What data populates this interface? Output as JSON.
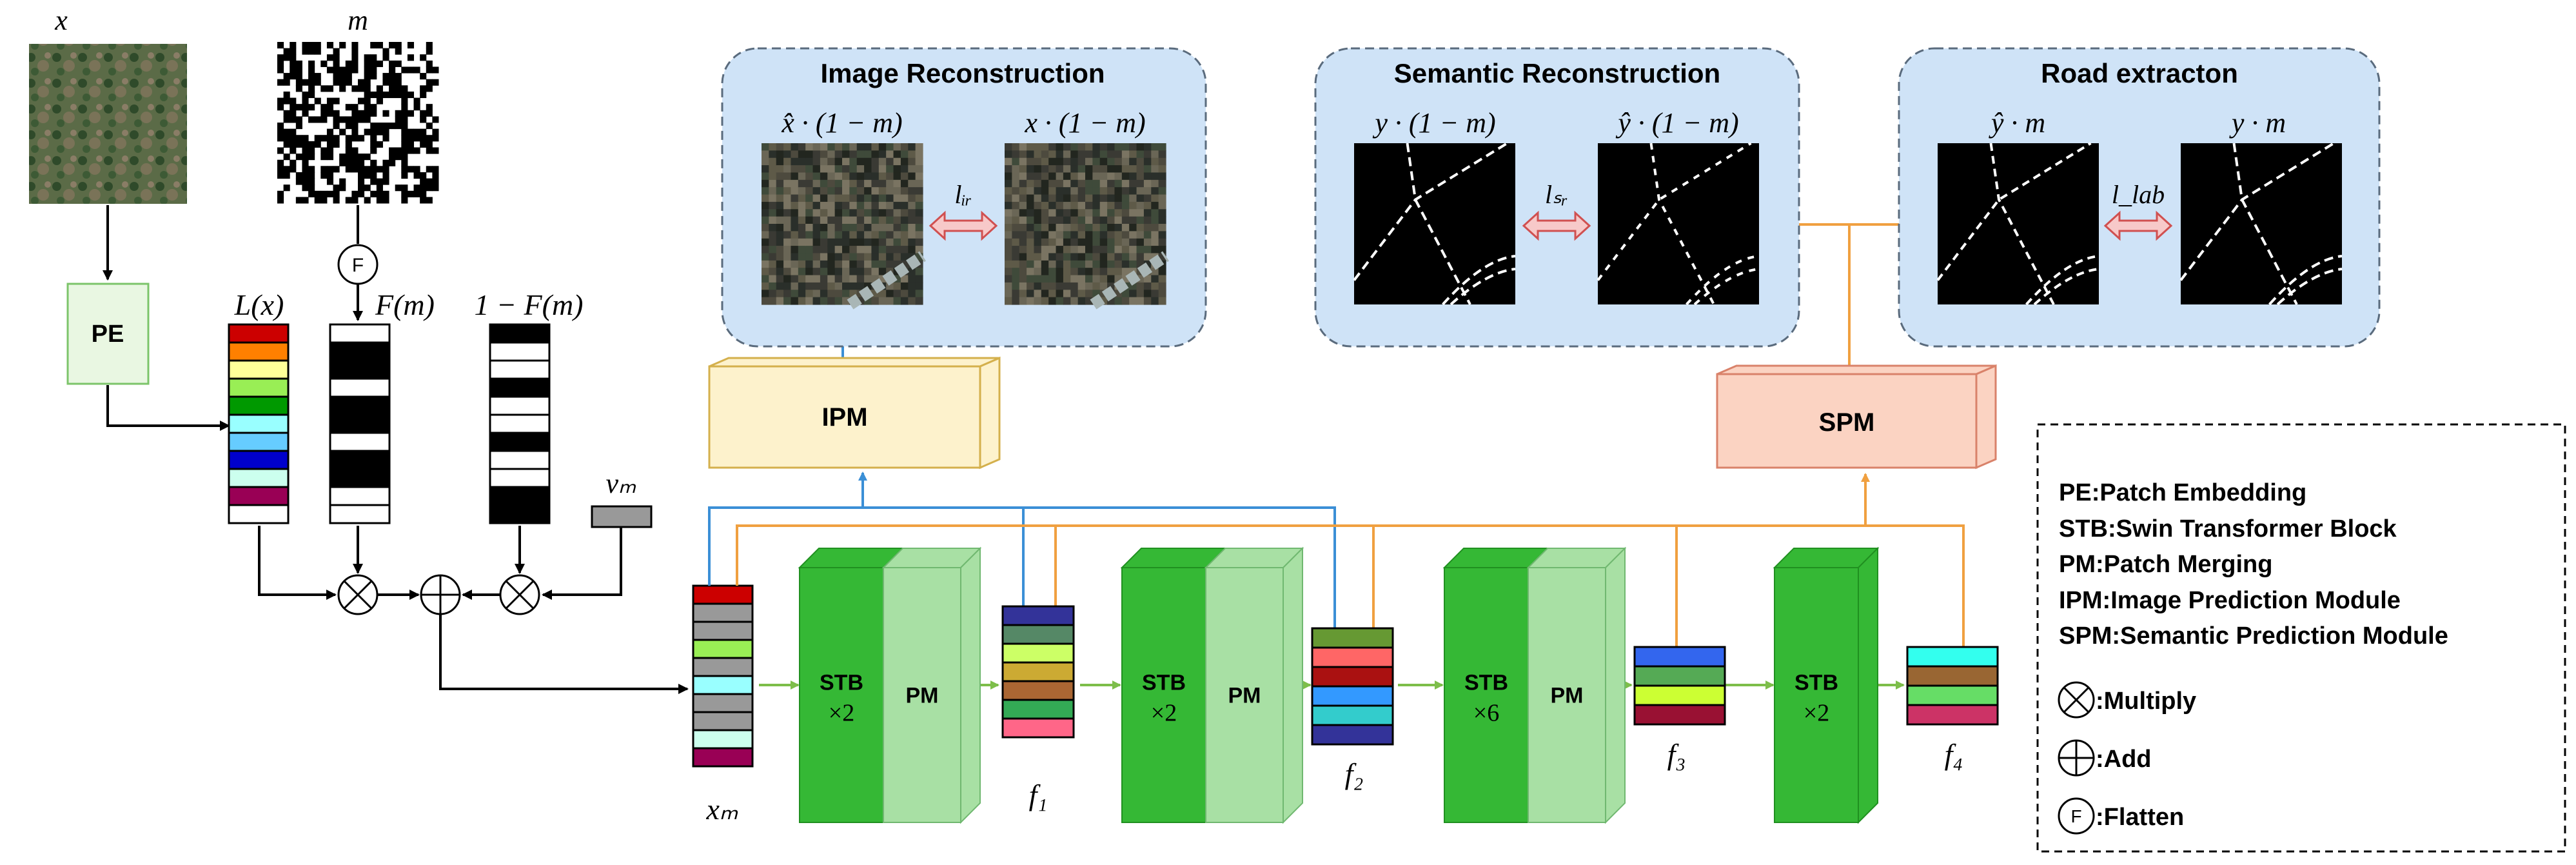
{
  "colors": {
    "panel_fill": "#cfe3f7",
    "panel_stroke": "#5a6b7d",
    "ipm_fill": "#fdf2cc",
    "ipm_stroke": "#d4b04c",
    "spm_fill": "#fbd3c2",
    "spm_stroke": "#d9826a",
    "pe_fill": "#e9f7e2",
    "pe_stroke": "#7cc46a",
    "stb_dark": "#35b835",
    "stb_light": "#a8e0a4",
    "blue_line": "#3b8fd6",
    "orange_line": "#f0a040",
    "green_line": "#7dbe4a",
    "arrow_fill": "#f7c9c9",
    "arrow_stroke": "#d05050"
  },
  "labels": {
    "x": "x",
    "m": "m",
    "Lx": "L(x)",
    "Fm": "F(m)",
    "one_minus_Fm": "1 − F(m)",
    "vm": "vₘ",
    "xm": "xₘ",
    "f1": "f₁",
    "f2": "f₂",
    "f3": "f₃",
    "f4": "f₄",
    "flatten_symbol": "F"
  },
  "blocks": {
    "pe": "PE",
    "ipm": "IPM",
    "spm": "SPM",
    "stage1": {
      "stb": "STB",
      "mult": "×2",
      "pm": "PM"
    },
    "stage2": {
      "stb": "STB",
      "mult": "×2",
      "pm": "PM"
    },
    "stage3": {
      "stb": "STB",
      "mult": "×6",
      "pm": "PM"
    },
    "stage4": {
      "stb": "STB",
      "mult": "×2"
    }
  },
  "panels": {
    "image": {
      "title": "Image Reconstruction",
      "left_label": "x̂ · (1 − m)",
      "right_label": "x · (1 − m)",
      "loss": "lᵢᵣ"
    },
    "semantic": {
      "title": "Semantic Reconstruction",
      "left_label": "y · (1 − m)",
      "right_label": "ŷ · (1 − m)",
      "loss": "lₛᵣ"
    },
    "road": {
      "title": "Road extracton",
      "left_label": "ŷ · m",
      "right_label": "y · m",
      "loss": "l_lab"
    }
  },
  "legend": {
    "pe": "PE:Patch Embedding",
    "stb": "STB:Swin Transformer Block",
    "pm": "PM:Patch Merging",
    "ipm": "IPM:Image Prediction Module",
    "spm": "SPM:Semantic Prediction Module",
    "multiply": ":Multiply",
    "add": ":Add",
    "flatten": ":Flatten",
    "flatten_symbol": "F"
  }
}
